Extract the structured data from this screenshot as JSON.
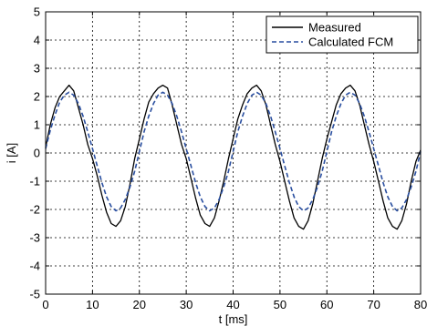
{
  "chart_data": {
    "type": "line",
    "xlabel": "t [ms]",
    "ylabel": "i [A]",
    "xlim": [
      0,
      80
    ],
    "ylim": [
      -5,
      5
    ],
    "xticks": [
      0,
      10,
      20,
      30,
      40,
      50,
      60,
      70,
      80
    ],
    "yticks": [
      -5,
      -4,
      -3,
      -2,
      -1,
      0,
      1,
      2,
      3,
      4,
      5
    ],
    "grid": true,
    "legend_position": "top-right",
    "series": [
      {
        "name": "Measured",
        "color": "#000000",
        "style": "solid",
        "x": [
          0,
          1,
          2,
          3,
          4,
          5,
          6,
          7,
          8,
          9,
          10,
          11,
          12,
          13,
          14,
          15,
          16,
          17,
          18,
          19,
          20,
          21,
          22,
          23,
          24,
          25,
          26,
          27,
          28,
          29,
          30,
          31,
          32,
          33,
          34,
          35,
          36,
          37,
          38,
          39,
          40,
          41,
          42,
          43,
          44,
          45,
          46,
          47,
          48,
          49,
          50,
          51,
          52,
          53,
          54,
          55,
          56,
          57,
          58,
          59,
          60,
          61,
          62,
          63,
          64,
          65,
          66,
          67,
          68,
          69,
          70,
          71,
          72,
          73,
          74,
          75,
          76,
          77,
          78,
          79,
          80
        ],
        "y": [
          0.2,
          1.0,
          1.6,
          2.0,
          2.2,
          2.4,
          2.2,
          1.6,
          1.0,
          0.3,
          -0.2,
          -0.8,
          -1.5,
          -2.1,
          -2.5,
          -2.6,
          -2.4,
          -1.9,
          -1.1,
          -0.2,
          0.5,
          1.2,
          1.8,
          2.1,
          2.3,
          2.4,
          2.3,
          1.7,
          1.0,
          0.3,
          -0.2,
          -0.9,
          -1.6,
          -2.2,
          -2.5,
          -2.6,
          -2.3,
          -1.7,
          -1.0,
          -0.2,
          0.5,
          1.2,
          1.7,
          2.1,
          2.3,
          2.4,
          2.2,
          1.7,
          1.0,
          0.3,
          -0.3,
          -1.0,
          -1.7,
          -2.3,
          -2.6,
          -2.7,
          -2.4,
          -1.8,
          -1.0,
          -0.2,
          0.5,
          1.1,
          1.7,
          2.1,
          2.3,
          2.4,
          2.2,
          1.7,
          1.0,
          0.3,
          -0.3,
          -1.0,
          -1.7,
          -2.3,
          -2.6,
          -2.7,
          -2.4,
          -1.8,
          -1.0,
          -0.3,
          0.1
        ]
      },
      {
        "name": "Calculated FCM",
        "color": "#2a4fa0",
        "style": "dashed",
        "x": [
          0,
          1,
          2,
          3,
          4,
          5,
          6,
          7,
          8,
          9,
          10,
          11,
          12,
          13,
          14,
          15,
          16,
          17,
          18,
          19,
          20,
          21,
          22,
          23,
          24,
          25,
          26,
          27,
          28,
          29,
          30,
          31,
          32,
          33,
          34,
          35,
          36,
          37,
          38,
          39,
          40,
          41,
          42,
          43,
          44,
          45,
          46,
          47,
          48,
          49,
          50,
          51,
          52,
          53,
          54,
          55,
          56,
          57,
          58,
          59,
          60,
          61,
          62,
          63,
          64,
          65,
          66,
          67,
          68,
          69,
          70,
          71,
          72,
          73,
          74,
          75,
          76,
          77,
          78,
          79,
          80
        ],
        "y": [
          0.15,
          0.8,
          1.35,
          1.8,
          2.05,
          2.15,
          2.05,
          1.75,
          1.3,
          0.75,
          0.15,
          -0.45,
          -1.05,
          -1.55,
          -1.9,
          -2.05,
          -1.95,
          -1.65,
          -1.2,
          -0.65,
          0.05,
          0.75,
          1.3,
          1.75,
          2.05,
          2.15,
          2.05,
          1.75,
          1.3,
          0.75,
          0.15,
          -0.45,
          -1.05,
          -1.55,
          -1.9,
          -2.05,
          -1.95,
          -1.65,
          -1.2,
          -0.65,
          0.05,
          0.75,
          1.3,
          1.75,
          2.05,
          2.15,
          2.05,
          1.75,
          1.3,
          0.75,
          0.15,
          -0.45,
          -1.05,
          -1.55,
          -1.9,
          -2.05,
          -1.95,
          -1.65,
          -1.2,
          -0.65,
          0.05,
          0.75,
          1.3,
          1.75,
          2.05,
          2.15,
          2.05,
          1.75,
          1.3,
          0.75,
          0.15,
          -0.45,
          -1.05,
          -1.55,
          -1.9,
          -2.05,
          -1.95,
          -1.65,
          -1.2,
          -0.65,
          0.05
        ]
      }
    ]
  }
}
